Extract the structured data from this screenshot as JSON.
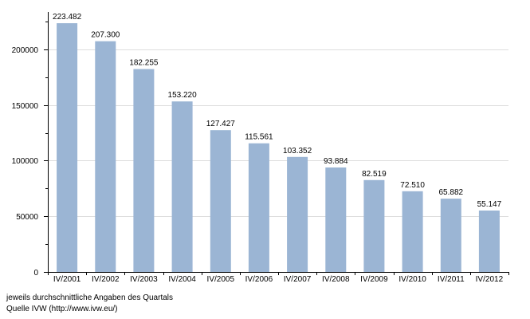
{
  "chart_data": {
    "type": "bar",
    "categories": [
      "IV/2001",
      "IV/2002",
      "IV/2003",
      "IV/2004",
      "IV/2005",
      "IV/2006",
      "IV/2007",
      "IV/2008",
      "IV/2009",
      "IV/2010",
      "IV/2011",
      "IV/2012"
    ],
    "values": [
      223482,
      207300,
      182255,
      153220,
      127427,
      115561,
      103352,
      93884,
      82519,
      72510,
      65882,
      55147
    ],
    "data_labels": [
      "223.482",
      "207.300",
      "182.255",
      "153.220",
      "127.427",
      "115.561",
      "103.352",
      "93.884",
      "82.519",
      "72.510",
      "65.882",
      "55.147"
    ],
    "ylim": [
      0,
      230000
    ],
    "yticks": [
      0,
      50000,
      100000,
      150000,
      200000
    ],
    "ytick_labels": [
      "0",
      "50000",
      "100000",
      "150000",
      "200000"
    ],
    "grid": true,
    "bar_color": "#9bb5d4",
    "grid_color": "#dddddd"
  },
  "footer": {
    "note": "jeweils durchschnittliche Angaben des Quartals",
    "source": "Quelle IVW (http://www.ivw.eu/)"
  }
}
